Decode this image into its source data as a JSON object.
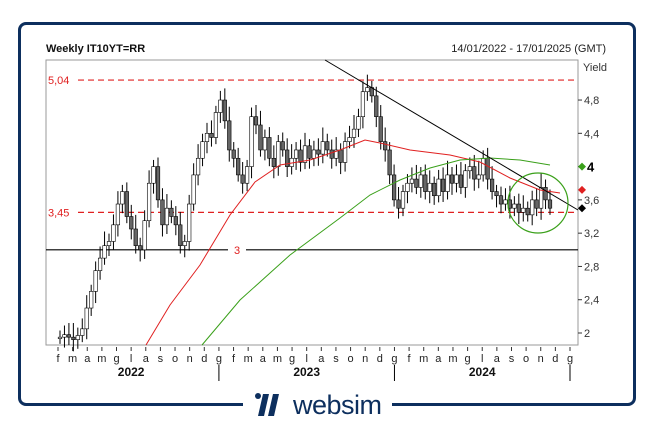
{
  "header": {
    "title": "Weekly IT10YT=RR",
    "date_range": "14/01/2022 - 17/01/2025 (GMT)",
    "y_axis_label": "Yield"
  },
  "brand": {
    "name": "websim",
    "color": "#0d2f5e"
  },
  "colors": {
    "frame": "#0d2f5e",
    "resistance_line": "#e02020",
    "ma_red": "#e02020",
    "ma_green": "#3aa01a",
    "trendline": "#000000",
    "candle_up": "#ffffff",
    "candle_down": "#666666"
  },
  "chart_data": {
    "type": "candlestick",
    "title": "Weekly IT10YT=RR",
    "subtitle": "14/01/2022 - 17/01/2025 (GMT)",
    "ylabel": "Yield",
    "xlabel": "",
    "ylim": [
      1.9,
      5.2
    ],
    "y_ticks": [
      "2",
      "2,4",
      "2,8",
      "3,2",
      "3,6",
      "4",
      "4,4",
      "4,8"
    ],
    "x_month_ticks": [
      "f",
      "m",
      "a",
      "m",
      "g",
      "l",
      "a",
      "s",
      "o",
      "n",
      "d",
      "g",
      "f",
      "m",
      "a",
      "m",
      "g",
      "l",
      "a",
      "s",
      "o",
      "n",
      "d",
      "g",
      "f",
      "m",
      "a",
      "m",
      "g",
      "l",
      "a",
      "s",
      "o",
      "n",
      "d",
      "g"
    ],
    "x_year_labels": [
      "2022",
      "2023",
      "2024"
    ],
    "horizontal_levels": [
      {
        "label": "5,04",
        "value": 5.04,
        "style": "dashed",
        "color": "#e02020"
      },
      {
        "label": "3,45",
        "value": 3.45,
        "style": "dashed",
        "color": "#e02020"
      },
      {
        "label": "3",
        "value": 3.0,
        "style": "solid",
        "color": "#000000"
      }
    ],
    "last_value_markers": [
      {
        "series": "ma_green",
        "value": 4.0,
        "label": "4"
      },
      {
        "series": "ma_red",
        "value": 3.72
      },
      {
        "series": "price",
        "value": 3.5
      }
    ],
    "approx_weekly_close": [
      1.95,
      1.98,
      1.95,
      1.92,
      1.97,
      2.05,
      2.3,
      2.5,
      2.75,
      2.9,
      3.05,
      3.1,
      3.3,
      3.55,
      3.7,
      3.4,
      3.25,
      3.05,
      3.0,
      3.35,
      3.8,
      4.0,
      3.6,
      3.3,
      3.5,
      3.4,
      3.3,
      3.05,
      3.1,
      3.55,
      3.9,
      4.1,
      4.3,
      4.4,
      4.35,
      4.65,
      4.8,
      4.55,
      4.2,
      4.1,
      3.9,
      3.8,
      4.0,
      4.6,
      4.5,
      4.2,
      4.35,
      4.1,
      4.0,
      4.3,
      4.2,
      4.0,
      4.1,
      4.2,
      4.05,
      4.25,
      4.1,
      4.2,
      4.15,
      4.3,
      4.2,
      4.1,
      4.2,
      4.05,
      4.3,
      4.35,
      4.45,
      4.6,
      4.9,
      4.95,
      4.85,
      4.6,
      4.3,
      4.2,
      3.9,
      3.6,
      3.5,
      3.7,
      3.8,
      3.85,
      3.75,
      3.9,
      3.7,
      3.8,
      3.65,
      3.85,
      3.7,
      3.9,
      3.8,
      3.9,
      3.75,
      3.95,
      4.0,
      3.85,
      3.9,
      4.1,
      3.85,
      3.7,
      3.65,
      3.55,
      3.6,
      3.5,
      3.55,
      3.45,
      3.5,
      3.42,
      3.6,
      3.5,
      3.75,
      3.6,
      3.5
    ],
    "ma_red_desc": "long moving average rising from ~1.9 (mid 2022) to ~4.3 (late 2023), then declining to ~3.72",
    "ma_green_desc": "longer moving average rising from ~2.0 (Jan 2023) to ~4.1 (mid 2024), flattening to ~4.0",
    "trendline": {
      "from": {
        "date": "2023-05",
        "value": 5.1
      },
      "to": {
        "date": "2025-01",
        "value": 3.5
      }
    },
    "annotation_circle": {
      "center_date": "2024-11",
      "center_value": 3.55,
      "color": "#3aa01a"
    },
    "grid": false,
    "legend": "none"
  }
}
